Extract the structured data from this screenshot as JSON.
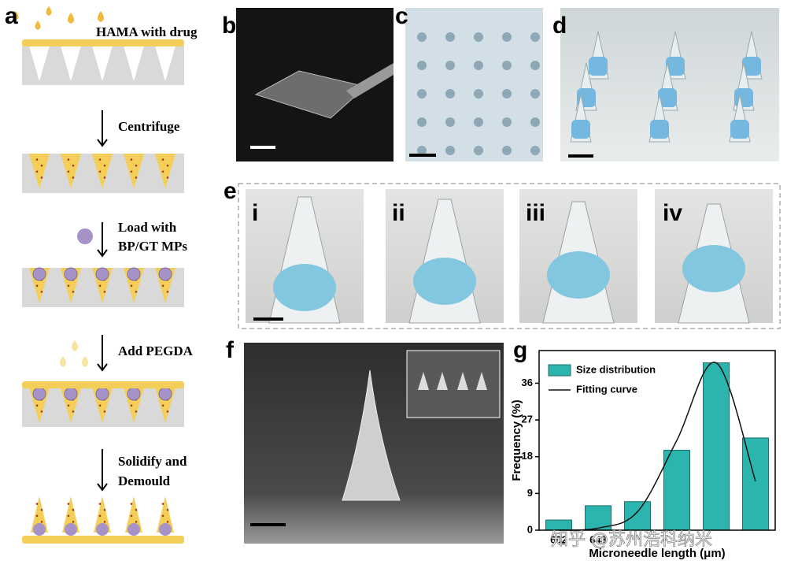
{
  "panels": {
    "a": {
      "label": "a",
      "steps": [
        "HAMA with drug",
        "Centrifuge",
        "Load with",
        "BP/GT MPs",
        "Add PEGDA",
        "Solidify and",
        "Demould"
      ]
    },
    "b": {
      "label": "b"
    },
    "c": {
      "label": "c"
    },
    "d": {
      "label": "d"
    },
    "e": {
      "label": "e",
      "sub": [
        "i",
        "ii",
        "iii",
        "iv"
      ]
    },
    "f": {
      "label": "f"
    },
    "g": {
      "label": "g"
    }
  },
  "watermark": "知乎 @苏州浩科纳米",
  "chart_data": {
    "type": "bar",
    "x_label": "Microneedle length (μm)",
    "y_label": "Frequency (%)",
    "categories": [
      "602",
      "643",
      null,
      null,
      null,
      null
    ],
    "series": [
      {
        "name": "Size distribution",
        "type": "bar",
        "color": "#2bb5ae",
        "values": [
          2.5,
          6,
          7,
          19.6,
          41,
          22.6
        ]
      },
      {
        "name": "Fitting curve",
        "type": "line",
        "color": "#111111",
        "values": [
          0,
          0.5,
          4.5,
          22,
          41,
          12
        ]
      }
    ],
    "ylim": [
      0,
      44
    ],
    "yticks": [
      0,
      9,
      18,
      27,
      36
    ],
    "legend": "upper left"
  }
}
